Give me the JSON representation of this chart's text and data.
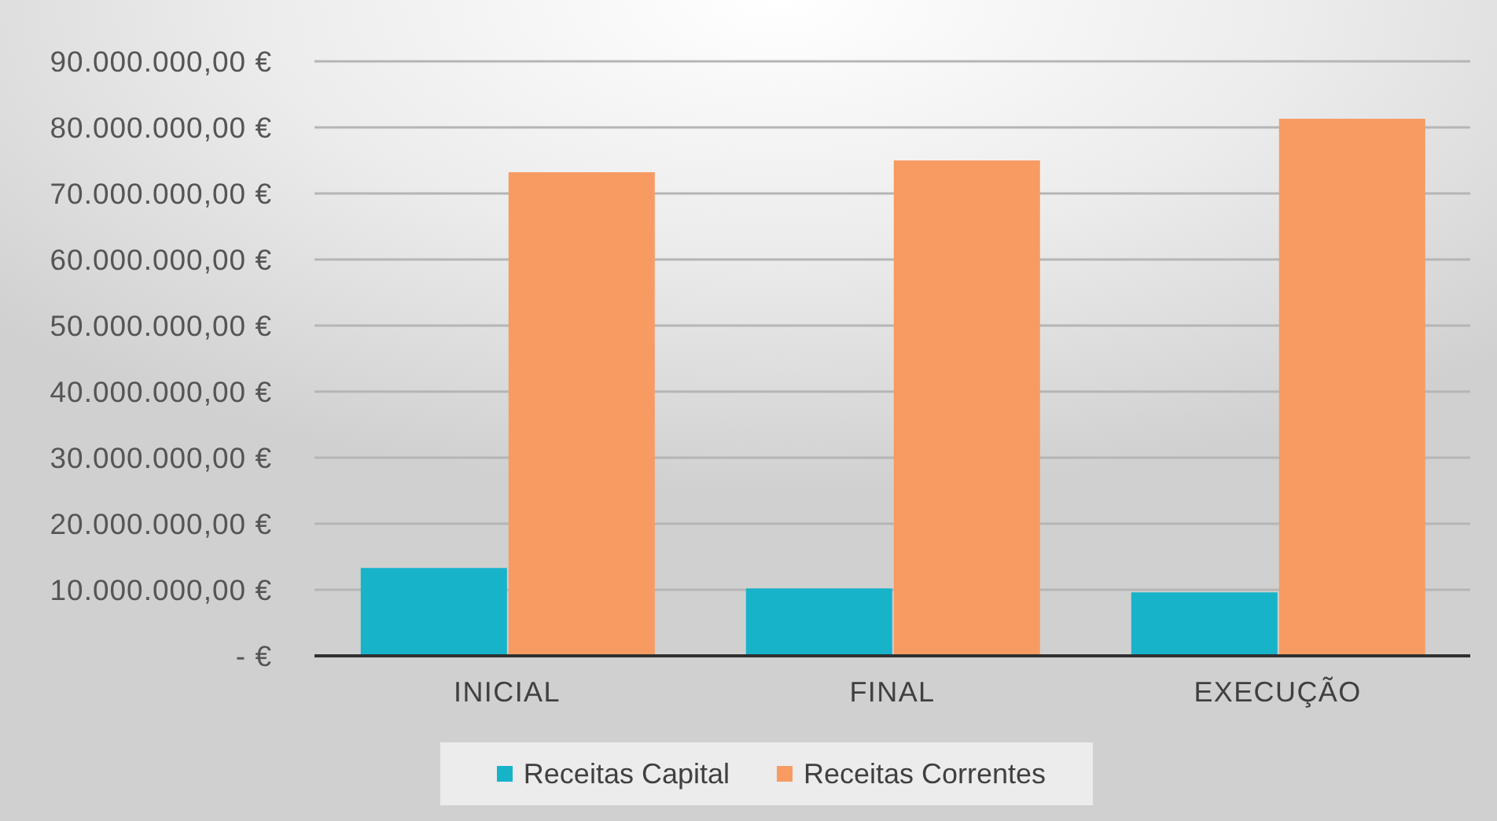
{
  "chart_data": {
    "type": "bar",
    "categories": [
      "INICIAL",
      "FINAL",
      "EXECUÇÃO"
    ],
    "series": [
      {
        "name": "Receitas Capital",
        "color": "#17b3c9",
        "values": [
          13300000,
          10200000,
          9600000
        ]
      },
      {
        "name": "Receitas Correntes",
        "color": "#f89b63",
        "values": [
          73200000,
          75000000,
          81300000
        ]
      }
    ],
    "ylim": [
      0,
      90000000
    ],
    "yticks": [
      {
        "value": 0,
        "label": "- €"
      },
      {
        "value": 10000000,
        "label": "10.000.000,00 €"
      },
      {
        "value": 20000000,
        "label": "20.000.000,00 €"
      },
      {
        "value": 30000000,
        "label": "30.000.000,00 €"
      },
      {
        "value": 40000000,
        "label": "40.000.000,00 €"
      },
      {
        "value": 50000000,
        "label": "50.000.000,00 €"
      },
      {
        "value": 60000000,
        "label": "60.000.000,00 €"
      },
      {
        "value": 70000000,
        "label": "70.000.000,00 €"
      },
      {
        "value": 80000000,
        "label": "80.000.000,00 €"
      },
      {
        "value": 90000000,
        "label": "90.000.000,00 €"
      }
    ],
    "grid": "y",
    "legend": "bottom"
  }
}
